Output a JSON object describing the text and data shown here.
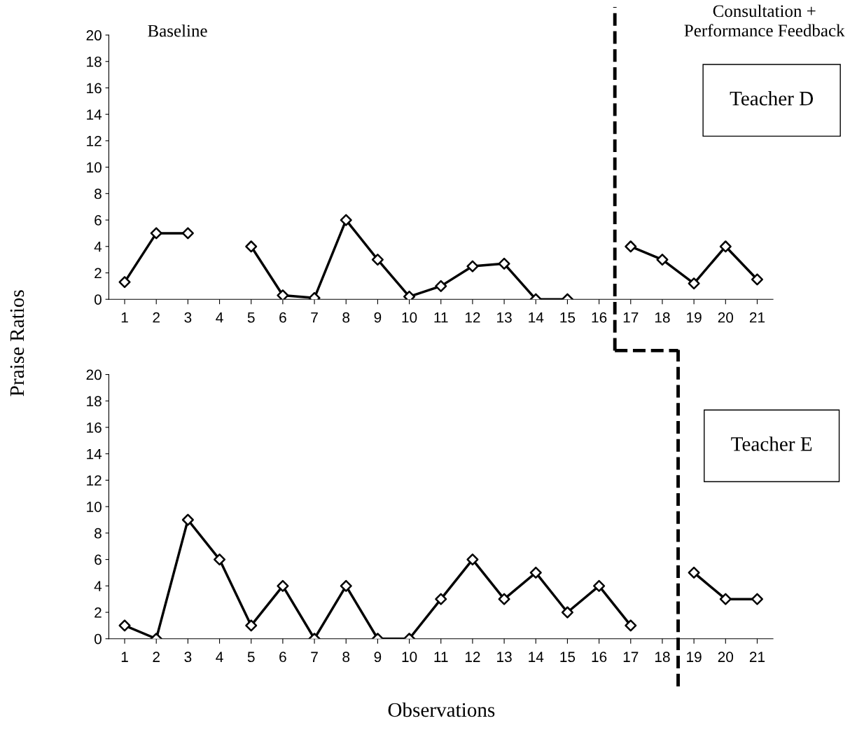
{
  "chart_data": [
    {
      "type": "line",
      "ylabel": "Praise Ratios",
      "x": [
        1,
        2,
        3,
        4,
        5,
        6,
        7,
        8,
        9,
        10,
        11,
        12,
        13,
        14,
        15,
        16,
        17,
        18,
        19,
        20,
        21
      ],
      "xlim": [
        0.5,
        21.5
      ],
      "xticks": [
        1,
        2,
        3,
        4,
        5,
        6,
        7,
        8,
        9,
        10,
        11,
        12,
        13,
        14,
        15,
        16,
        17,
        18,
        19,
        20,
        21
      ],
      "ylim": [
        0,
        20
      ],
      "yticks": [
        0,
        2,
        4,
        6,
        8,
        10,
        12,
        14,
        16,
        18,
        20
      ],
      "series": [
        {
          "color": "#000000",
          "values": [
            1.3,
            5,
            5,
            null,
            4,
            0.3,
            0.1,
            6,
            3,
            0.2,
            1,
            2.5,
            2.7,
            0,
            0,
            null,
            4,
            3,
            1.2,
            4,
            1.5
          ]
        }
      ],
      "marker": "diamond",
      "line_style": "solid",
      "grid": false,
      "ref_lines": [
        {
          "axis": "x",
          "value": 16.5,
          "color": "#000000",
          "line_style": "dashed"
        }
      ],
      "annotations": [
        "Baseline",
        "Consultation +\nPerformance Feedback",
        "Teacher D"
      ]
    },
    {
      "type": "line",
      "xlabel": "Observations",
      "x": [
        1,
        2,
        3,
        4,
        5,
        6,
        7,
        8,
        9,
        10,
        11,
        12,
        13,
        14,
        15,
        16,
        17,
        18,
        19,
        20,
        21
      ],
      "xlim": [
        0.5,
        21.5
      ],
      "xticks": [
        1,
        2,
        3,
        4,
        5,
        6,
        7,
        8,
        9,
        10,
        11,
        12,
        13,
        14,
        15,
        16,
        17,
        18,
        19,
        20,
        21
      ],
      "ylim": [
        0,
        20
      ],
      "yticks": [
        0,
        2,
        4,
        6,
        8,
        10,
        12,
        14,
        16,
        18,
        20
      ],
      "series": [
        {
          "color": "#000000",
          "values": [
            1,
            0,
            9,
            6,
            1,
            4,
            0,
            4,
            0,
            0,
            3,
            6,
            3,
            5,
            2,
            4,
            1,
            null,
            5,
            3,
            3
          ]
        }
      ],
      "marker": "diamond",
      "line_style": "solid",
      "grid": false,
      "ref_lines": [
        {
          "axis": "x",
          "value": 18.5,
          "color": "#000000",
          "line_style": "dashed"
        }
      ],
      "annotations": [
        "Teacher E"
      ]
    }
  ]
}
